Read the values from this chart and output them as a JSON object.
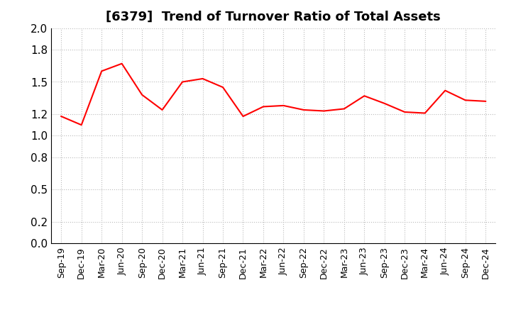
{
  "title": "[6379]  Trend of Turnover Ratio of Total Assets",
  "x_labels": [
    "Sep-19",
    "Dec-19",
    "Mar-20",
    "Jun-20",
    "Sep-20",
    "Dec-20",
    "Mar-21",
    "Jun-21",
    "Sep-21",
    "Dec-21",
    "Mar-22",
    "Jun-22",
    "Sep-22",
    "Dec-22",
    "Mar-23",
    "Jun-23",
    "Sep-23",
    "Dec-23",
    "Mar-24",
    "Jun-24",
    "Sep-24",
    "Dec-24"
  ],
  "y_values": [
    1.18,
    1.1,
    1.6,
    1.67,
    1.38,
    1.24,
    1.5,
    1.53,
    1.45,
    1.18,
    1.27,
    1.28,
    1.24,
    1.23,
    1.25,
    1.37,
    1.3,
    1.22,
    1.21,
    1.42,
    1.33,
    1.32
  ],
  "line_color": "#FF0000",
  "line_width": 1.5,
  "ylim": [
    0.0,
    2.0
  ],
  "yticks": [
    0.0,
    0.2,
    0.5,
    0.8,
    1.0,
    1.2,
    1.5,
    1.8,
    2.0
  ],
  "grid_color": "#bbbbbb",
  "bg_color": "#ffffff",
  "title_fontsize": 13,
  "tick_fontsize": 11,
  "xtick_fontsize": 9
}
